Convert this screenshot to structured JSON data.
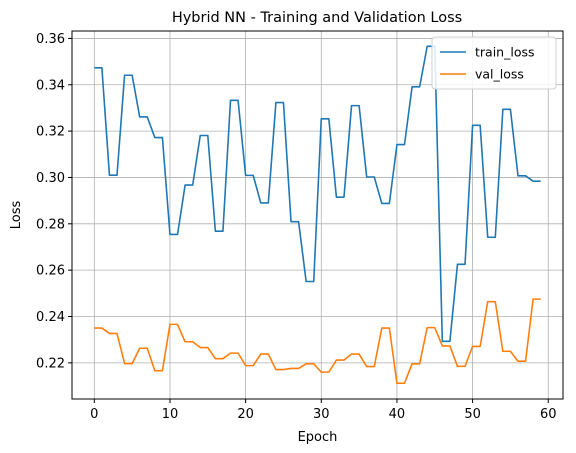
{
  "chart_data": {
    "type": "line",
    "title": "Hybrid NN - Training and Validation Loss",
    "xlabel": "Epoch",
    "ylabel": "Loss",
    "xlim": [
      -2.95,
      61.95
    ],
    "ylim": [
      0.2044,
      0.3632
    ],
    "xticks": [
      0,
      10,
      20,
      30,
      40,
      50,
      60
    ],
    "yticks": [
      0.22,
      0.24,
      0.26,
      0.28,
      0.3,
      0.32,
      0.34,
      0.36
    ],
    "ytick_labels": [
      "0.22",
      "0.24",
      "0.26",
      "0.28",
      "0.30",
      "0.32",
      "0.34",
      "0.36"
    ],
    "grid": true,
    "legend_position": "upper right",
    "x": [
      0,
      1,
      2,
      3,
      4,
      5,
      6,
      7,
      8,
      9,
      10,
      11,
      12,
      13,
      14,
      15,
      16,
      17,
      18,
      19,
      20,
      21,
      22,
      23,
      24,
      25,
      26,
      27,
      28,
      29,
      30,
      31,
      32,
      33,
      34,
      35,
      36,
      37,
      38,
      39,
      40,
      41,
      42,
      43,
      44,
      45,
      46,
      47,
      48,
      49,
      50,
      51,
      52,
      53,
      54,
      55,
      56,
      57,
      58,
      59
    ],
    "series": [
      {
        "name": "train_loss",
        "color": "#1f77b4",
        "values": [
          0.3473,
          0.3473,
          0.301,
          0.301,
          0.3441,
          0.3441,
          0.3261,
          0.3261,
          0.3172,
          0.3172,
          0.2754,
          0.2754,
          0.2967,
          0.2967,
          0.3181,
          0.3181,
          0.2768,
          0.2768,
          0.3333,
          0.3333,
          0.3009,
          0.3009,
          0.289,
          0.289,
          0.3323,
          0.3323,
          0.2809,
          0.2809,
          0.2551,
          0.2551,
          0.3253,
          0.3253,
          0.2915,
          0.2915,
          0.331,
          0.331,
          0.3002,
          0.3002,
          0.2888,
          0.2888,
          0.3142,
          0.3142,
          0.3391,
          0.3391,
          0.3566,
          0.3566,
          0.2293,
          0.2293,
          0.2625,
          0.2625,
          0.3225,
          0.3225,
          0.2742,
          0.2742,
          0.3294,
          0.3294,
          0.3007,
          0.3007,
          0.2984,
          0.2984
        ]
      },
      {
        "name": "val_loss",
        "color": "#ff7f0e",
        "values": [
          0.235,
          0.235,
          0.2327,
          0.2327,
          0.2197,
          0.2197,
          0.2263,
          0.2263,
          0.2166,
          0.2166,
          0.2366,
          0.2366,
          0.2291,
          0.2291,
          0.2266,
          0.2266,
          0.2218,
          0.2218,
          0.2242,
          0.2242,
          0.2188,
          0.2188,
          0.2238,
          0.2238,
          0.2171,
          0.2171,
          0.2176,
          0.2176,
          0.2196,
          0.2196,
          0.216,
          0.216,
          0.2212,
          0.2212,
          0.2238,
          0.2238,
          0.2184,
          0.2184,
          0.235,
          0.235,
          0.2112,
          0.2112,
          0.2196,
          0.2196,
          0.2352,
          0.2352,
          0.2273,
          0.2273,
          0.2185,
          0.2185,
          0.2271,
          0.2271,
          0.2464,
          0.2464,
          0.225,
          0.225,
          0.2207,
          0.2207,
          0.2475,
          0.2475
        ]
      }
    ]
  }
}
